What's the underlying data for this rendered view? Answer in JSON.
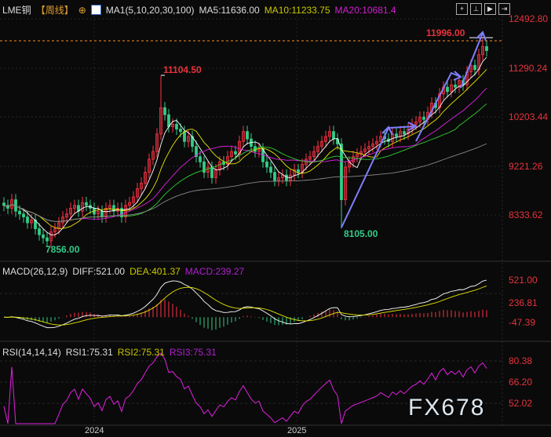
{
  "header": {
    "symbol": "LME铜",
    "period": "【周线】",
    "indicator": "MA1(5,10,20,30,100)",
    "ma5": "MA5:11636.00",
    "ma10": "MA10:11233.75",
    "ma20": "MA20:10681.4"
  },
  "macd_header": {
    "name": "MACD(26,12,9)",
    "diff": "DIFF:521.00",
    "dea": "DEA:401.37",
    "macd": "MACD:239.27"
  },
  "rsi_header": {
    "name": "RSI(14,14,14)",
    "rsi1": "RSI1:75.31",
    "rsi2": "RSI2:75.31",
    "rsi3": "RSI3:75.31"
  },
  "watermark": "FX678",
  "colors": {
    "up": "#ff3344",
    "down": "#33cc88",
    "ma5": "#ffffff",
    "ma10": "#e6e600",
    "ma20": "#e020e0",
    "ma30": "#33cc33",
    "ma100": "#888888",
    "axis_text": "#e8323c",
    "arrow": "#7f7fff",
    "price_line": "#ff8c1a"
  },
  "chart_data": [
    {
      "type": "candlestick",
      "title": "LME铜【周线】",
      "y_scale": "log",
      "y_ticks": [
        "12492.80",
        "11290.24",
        "10203.44",
        "9221.26",
        "8333.62"
      ],
      "x_ticks": [
        "2024",
        "2025"
      ],
      "annotations": {
        "high": "11104.50",
        "low1": "7856.00",
        "low2": "8105.00",
        "last_high": "11996.00"
      },
      "closes": [
        8500,
        8450,
        8600,
        8400,
        8350,
        8300,
        8200,
        8250,
        8100,
        8000,
        7950,
        7900,
        8050,
        8100,
        8200,
        8300,
        8350,
        8450,
        8500,
        8400,
        8550,
        8500,
        8450,
        8350,
        8400,
        8300,
        8450,
        8500,
        8400,
        8450,
        8300,
        8500,
        8550,
        8650,
        8800,
        8900,
        9100,
        9350,
        9500,
        9850,
        10400,
        10250,
        10000,
        10050,
        9950,
        9900,
        9700,
        9800,
        9600,
        9400,
        9300,
        9100,
        9200,
        9000,
        9150,
        9300,
        9250,
        9400,
        9500,
        9450,
        9700,
        9900,
        9750,
        9600,
        9500,
        9550,
        9300,
        9200,
        9100,
        8950,
        9000,
        9050,
        8950,
        9050,
        9150,
        9100,
        9250,
        9350,
        9400,
        9500,
        9600,
        9700,
        9800,
        9900,
        9750,
        9650,
        8600,
        9200,
        9300,
        9400,
        9450,
        9500,
        9550,
        9600,
        9650,
        9700,
        9800,
        9750,
        9700,
        9850,
        9800,
        9900,
        9850,
        9950,
        10050,
        10100,
        10200,
        10150,
        10300,
        10500,
        10400,
        10700,
        10850,
        10750,
        10900,
        10850,
        11000,
        10900,
        11200,
        11350,
        11250,
        11600,
        11800,
        11700
      ]
    },
    {
      "type": "line",
      "title": "MACD(26,12,9)",
      "y_ticks": [
        "521.00",
        "236.81",
        "-47.39"
      ]
    },
    {
      "type": "line",
      "title": "RSI(14,14,14)",
      "y_ticks": [
        "80.38",
        "66.20",
        "52.02"
      ]
    }
  ]
}
